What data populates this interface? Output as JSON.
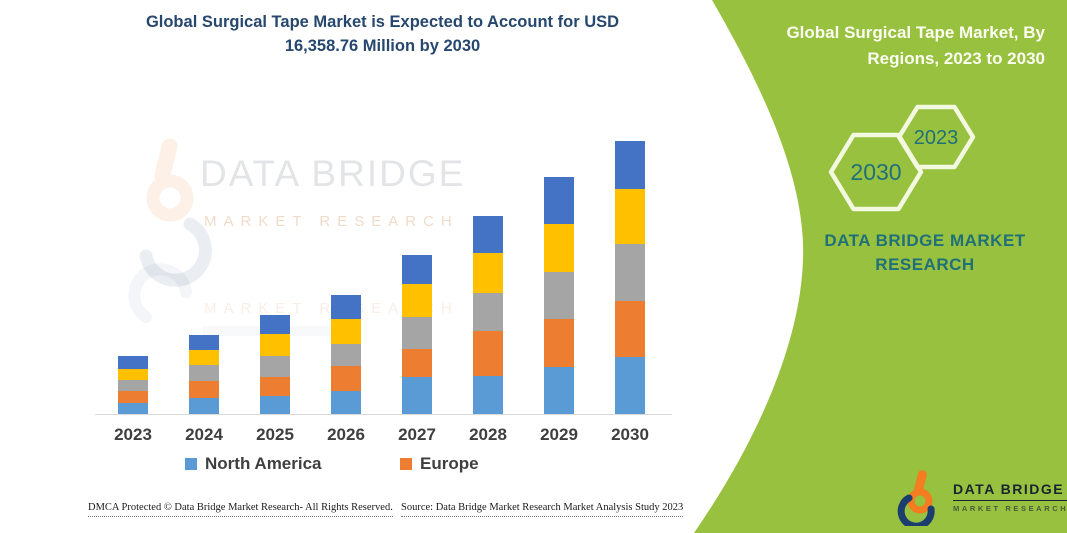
{
  "chart": {
    "title_line1": "Global Surgical Tape Market is Expected to Account for USD",
    "title_line2": "16,358.76 Million by 2030",
    "title_color": "#26476E"
  },
  "chart_data": {
    "type": "bar",
    "stacked": true,
    "title": "Global Surgical Tape Market is Expected to Account for USD 16,358.76 Million by 2030",
    "unit": "USD Million",
    "categories": [
      "2023",
      "2024",
      "2025",
      "2026",
      "2027",
      "2028",
      "2029",
      "2030"
    ],
    "series": [
      {
        "name": "North America",
        "color": "#5B9BD5",
        "values": [
          660,
          960,
          1100,
          1400,
          2200,
          2280,
          2820,
          3420
        ]
      },
      {
        "name": "Europe",
        "color": "#ED7D31",
        "values": [
          720,
          1020,
          1100,
          1500,
          1700,
          2700,
          2880,
          3360
        ]
      },
      {
        "name": "",
        "color": "#A5A5A5",
        "values": [
          660,
          960,
          1300,
          1300,
          1900,
          2280,
          2820,
          3420
        ]
      },
      {
        "name": "",
        "color": "#FFC000",
        "values": [
          660,
          900,
          1300,
          1500,
          2000,
          2400,
          2880,
          3300
        ]
      },
      {
        "name": "",
        "color": "#4472C4",
        "values": [
          780,
          900,
          1140,
          1440,
          1700,
          2220,
          2820,
          2860
        ]
      }
    ],
    "totals_estimated": [
      3480,
      4740,
      5940,
      7140,
      9500,
      11880,
      14220,
      16360
    ],
    "final_total_label": "16,358.76",
    "ylim": [
      0,
      16360
    ],
    "grid": false,
    "legend": [
      {
        "label": "North America",
        "color": "#5B9BD5"
      },
      {
        "label": "Europe",
        "color": "#ED7D31"
      }
    ],
    "legend_position": "bottom"
  },
  "watermark": {
    "brand": "DATA BRIDGE",
    "sub": "MARKET RESEARCH"
  },
  "panel": {
    "background": "#97C13E",
    "title_line1": "Global Surgical Tape Market, By",
    "title_line2": "Regions, 2023 to 2030",
    "hexagon_large_label": "2030",
    "hexagon_small_label": "2023",
    "brand_line1": "DATA BRIDGE MARKET",
    "brand_line2": "RESEARCH",
    "brand_color": "#20707A"
  },
  "logo": {
    "title": "DATA BRIDGE",
    "sub": "MARKET RESEARCH"
  },
  "footer": {
    "left": "DMCA Protected © Data Bridge Market Research-  All Rights Reserved.",
    "right": "Source: Data Bridge Market Research  Market Analysis Study 2023"
  }
}
